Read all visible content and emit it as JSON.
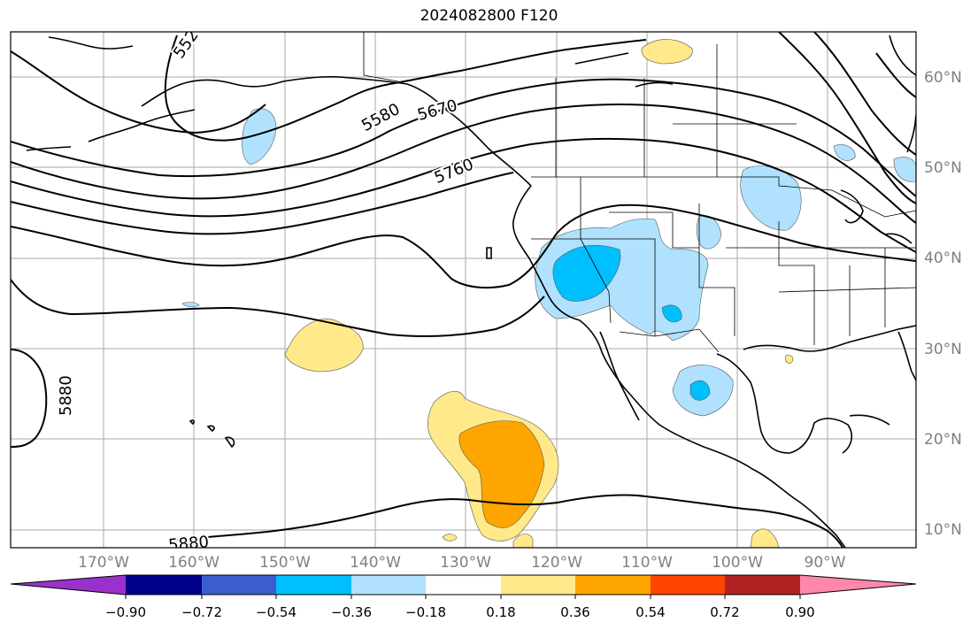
{
  "title": "2024082800 F120",
  "longitude_labels": [
    "170°W",
    "160°W",
    "150°W",
    "140°W",
    "130°W",
    "120°W",
    "110°W",
    "100°W",
    "90°W"
  ],
  "latitude_labels": [
    "60°N",
    "50°N",
    "40°N",
    "30°N",
    "20°N",
    "10°N"
  ],
  "contour_labels": [
    "552",
    "5580",
    "5670",
    "5760",
    "5880",
    "5880"
  ],
  "colorbar": {
    "tick_labels": [
      "−0.90",
      "−0.72",
      "−0.54",
      "−0.36",
      "−0.18",
      "0.18",
      "0.36",
      "0.54",
      "0.72",
      "0.90"
    ],
    "colors": [
      "#9932cc",
      "#00008b",
      "#3a5fcd",
      "#00bfff",
      "#b0e2ff",
      "#ffffff",
      "#ffe98a",
      "#ffa500",
      "#ff4500",
      "#b22222",
      "#ff88aa"
    ]
  },
  "shading_colors": {
    "light_blue": "#b0e2ff",
    "blue": "#00bfff",
    "light_yellow": "#ffe98a",
    "orange": "#ffa500"
  }
}
